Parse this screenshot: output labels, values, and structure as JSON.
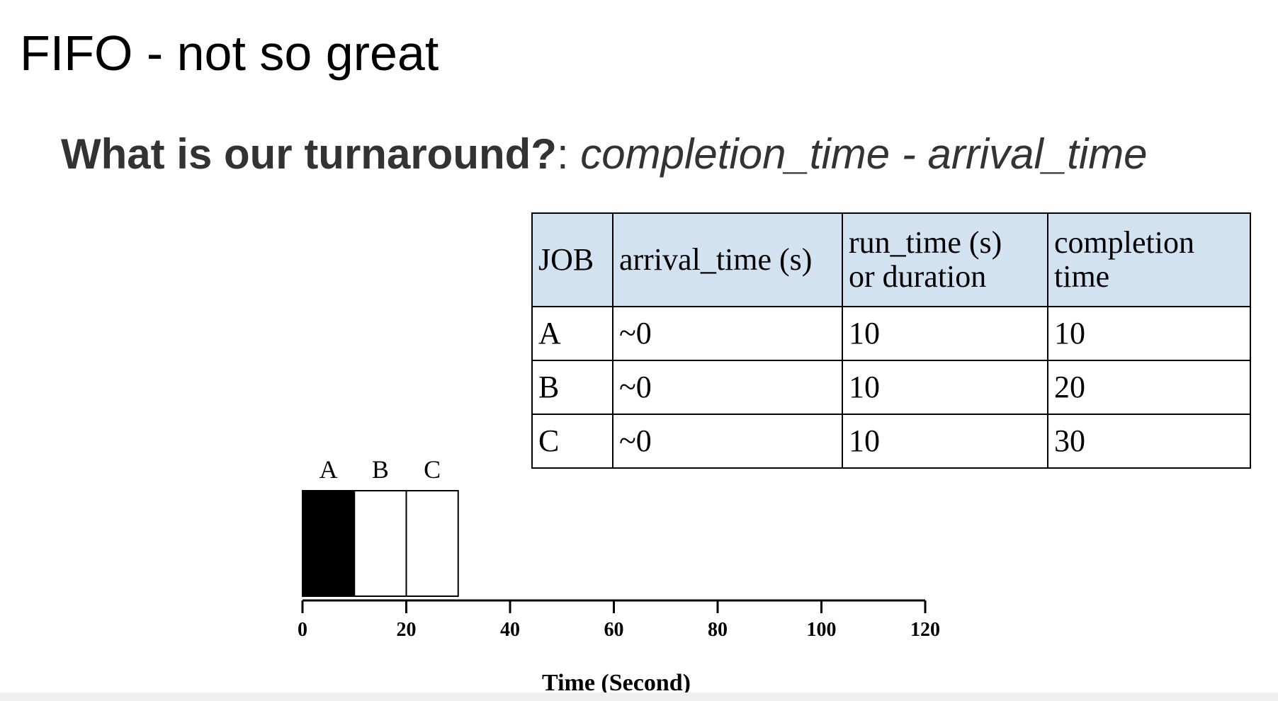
{
  "slide": {
    "title": "FIFO - not so great",
    "subtitle": {
      "question": "What is our turnaround?",
      "separator": ": ",
      "formula": "completion_time - arrival_time"
    }
  },
  "table": {
    "headers": [
      "JOB",
      "arrival_time (s)",
      "run_time (s)\nor duration",
      "completion\ntime"
    ],
    "rows": [
      {
        "job": "A",
        "arrival": "~0",
        "run": "10",
        "completion": "10"
      },
      {
        "job": "B",
        "arrival": "~0",
        "run": "10",
        "completion": "20"
      },
      {
        "job": "C",
        "arrival": "~0",
        "run": "10",
        "completion": "30"
      }
    ],
    "header_color": "#d2e2f1"
  },
  "timeline": {
    "xlabel": "Time (Second)",
    "xlim": [
      0,
      120
    ],
    "ticks": [
      0,
      20,
      40,
      60,
      80,
      100,
      120
    ],
    "jobs": [
      {
        "label": "A",
        "start": 0,
        "end": 10,
        "fill": "#000000"
      },
      {
        "label": "B",
        "start": 10,
        "end": 20,
        "fill": "#ffffff"
      },
      {
        "label": "C",
        "start": 20,
        "end": 30,
        "fill": "#ffffff"
      }
    ]
  }
}
